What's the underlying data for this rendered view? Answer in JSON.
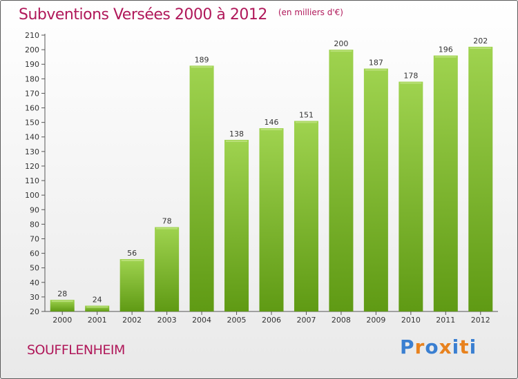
{
  "header": {
    "title": "Subventions Versées 2000 à 2012",
    "subtitle": "(en milliers d'€)"
  },
  "footer": {
    "commune": "SOUFFLENHEIM",
    "logo": "Proxiti"
  },
  "colors": {
    "title": "#b0185a",
    "bar_light": "#9fd34f",
    "bar_dark": "#5f9a14",
    "logo_letters": [
      "#3a7fd1",
      "#e8821e",
      "#3a7fd1",
      "#e8821e",
      "#3a7fd1",
      "#e8821e",
      "#3a7fd1"
    ]
  },
  "chart_data": {
    "type": "bar",
    "categories": [
      "2000",
      "2001",
      "2002",
      "2003",
      "2004",
      "2005",
      "2006",
      "2007",
      "2008",
      "2009",
      "2010",
      "2011",
      "2012"
    ],
    "values": [
      28,
      24,
      56,
      78,
      189,
      138,
      146,
      151,
      200,
      187,
      178,
      196,
      202
    ],
    "ylim": [
      20,
      210
    ],
    "ytick_step": 10,
    "grid": false,
    "legend": "none"
  }
}
